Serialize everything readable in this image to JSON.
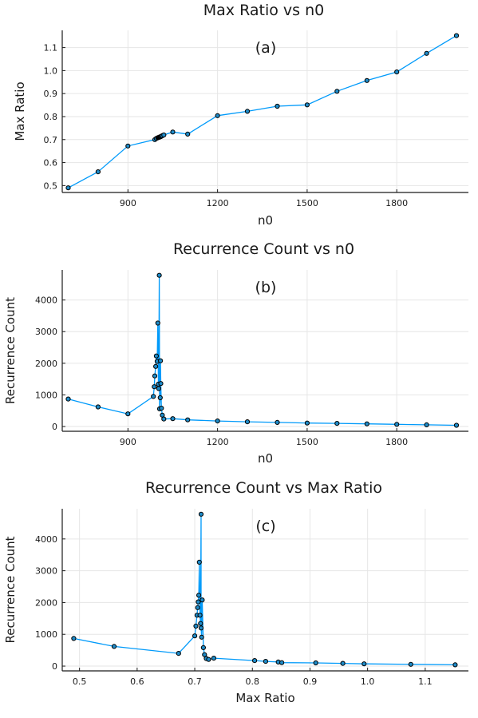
{
  "colors": {
    "series": "#009AFA",
    "marker": "#1E8BC8",
    "background": "#ffffff"
  },
  "chart_data": [
    {
      "type": "line",
      "title": "Max Ratio vs n0",
      "panel_label": "(a)",
      "xlabel": "n0",
      "ylabel": "Max Ratio",
      "xlim": [
        680,
        2040
      ],
      "ylim": [
        0.47,
        1.175
      ],
      "xticks": [
        900,
        1200,
        1500,
        1800
      ],
      "yticks": [
        0.5,
        0.6,
        0.7,
        0.8,
        0.9,
        1.0,
        1.1
      ],
      "ytick_labels": [
        "0.5",
        "0.6",
        "0.7",
        "0.8",
        "0.9",
        "1.0",
        "1.1"
      ],
      "grid": true,
      "x": [
        700,
        800,
        900,
        990,
        995,
        1000,
        1002,
        1004,
        1006,
        1008,
        1010,
        1012,
        1015,
        1020,
        1050,
        1100,
        1200,
        1300,
        1400,
        1500,
        1600,
        1700,
        1800,
        1900,
        2000
      ],
      "y": [
        0.49,
        0.56,
        0.672,
        0.7,
        0.705,
        0.708,
        0.709,
        0.71,
        0.711,
        0.712,
        0.713,
        0.715,
        0.717,
        0.72,
        0.733,
        0.724,
        0.804,
        0.823,
        0.845,
        0.851,
        0.91,
        0.957,
        0.994,
        1.075,
        1.152
      ]
    },
    {
      "type": "line",
      "title": "Recurrence Count vs n0",
      "panel_label": "(b)",
      "xlabel": "n0",
      "ylabel": "Recurrence Count",
      "xlim": [
        680,
        2040
      ],
      "ylim": [
        -150,
        4950
      ],
      "xticks": [
        900,
        1200,
        1500,
        1800
      ],
      "yticks": [
        0,
        1000,
        2000,
        3000,
        4000
      ],
      "ytick_labels": [
        "0",
        "1000",
        "2000",
        "3000",
        "4000"
      ],
      "grid": true,
      "x": [
        700,
        800,
        900,
        985,
        988,
        990,
        993,
        995,
        998,
        1000,
        1002,
        1003,
        1005,
        1006,
        1008,
        1009,
        1010,
        1012,
        1015,
        1020,
        1050,
        1100,
        1200,
        1300,
        1400,
        1500,
        1600,
        1700,
        1800,
        1900,
        2000
      ],
      "y": [
        870,
        620,
        400,
        950,
        1260,
        1600,
        1900,
        2230,
        2060,
        3270,
        1340,
        1200,
        4780,
        560,
        910,
        2080,
        1360,
        580,
        360,
        240,
        250,
        210,
        175,
        150,
        130,
        110,
        100,
        85,
        70,
        55,
        40
      ]
    },
    {
      "type": "line",
      "title": "Recurrence Count vs Max Ratio",
      "panel_label": "(c)",
      "xlabel": "Max Ratio",
      "ylabel": "Recurrence Count",
      "xlim": [
        0.47,
        1.175
      ],
      "ylim": [
        -150,
        4950
      ],
      "xticks": [
        0.5,
        0.6,
        0.7,
        0.8,
        0.9,
        1.0,
        1.1
      ],
      "xtick_labels": [
        "0.5",
        "0.6",
        "0.7",
        "0.8",
        "0.9",
        "1.0",
        "1.1"
      ],
      "yticks": [
        0,
        1000,
        2000,
        3000,
        4000
      ],
      "ytick_labels": [
        "0",
        "1000",
        "2000",
        "3000",
        "4000"
      ],
      "grid": true,
      "x": [
        0.49,
        0.56,
        0.672,
        0.7,
        0.702,
        0.704,
        0.705,
        0.706,
        0.707,
        0.708,
        0.709,
        0.71,
        0.711,
        0.711,
        0.712,
        0.713,
        0.715,
        0.717,
        0.72,
        0.724,
        0.733,
        0.804,
        0.823,
        0.845,
        0.851,
        0.91,
        0.957,
        0.994,
        1.075,
        1.152
      ],
      "y": [
        870,
        620,
        400,
        950,
        1260,
        1600,
        1840,
        2020,
        2230,
        3270,
        1600,
        1340,
        4780,
        1200,
        910,
        2080,
        580,
        360,
        240,
        210,
        250,
        175,
        150,
        130,
        110,
        100,
        85,
        70,
        55,
        40
      ]
    }
  ]
}
